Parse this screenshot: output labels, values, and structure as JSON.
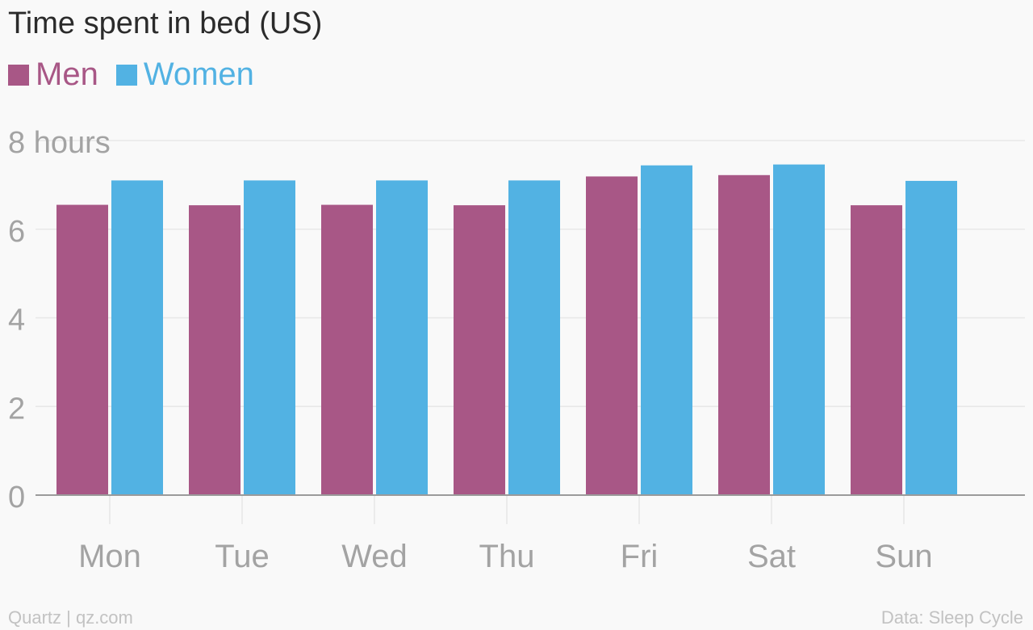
{
  "title": "Time spent in bed (US)",
  "footer": {
    "credit": "Quartz | qz.com",
    "source": "Data: Sleep Cycle"
  },
  "chart_data": {
    "type": "bar",
    "title": "Time spent in bed (US)",
    "categories": [
      "Mon",
      "Tue",
      "Wed",
      "Thu",
      "Fri",
      "Sat",
      "Sun"
    ],
    "series": [
      {
        "name": "Men",
        "color": "#a85786",
        "values": [
          6.55,
          6.54,
          6.55,
          6.54,
          7.19,
          7.22,
          6.54
        ]
      },
      {
        "name": "Women",
        "color": "#52b2e3",
        "values": [
          7.1,
          7.1,
          7.1,
          7.1,
          7.44,
          7.46,
          7.09
        ]
      }
    ],
    "yticks": [
      "0",
      "2",
      "4",
      "6",
      "8 hours"
    ],
    "ylim": [
      0,
      8
    ],
    "xlabel": "",
    "ylabel": "",
    "grid": true,
    "legend": "top-left"
  }
}
